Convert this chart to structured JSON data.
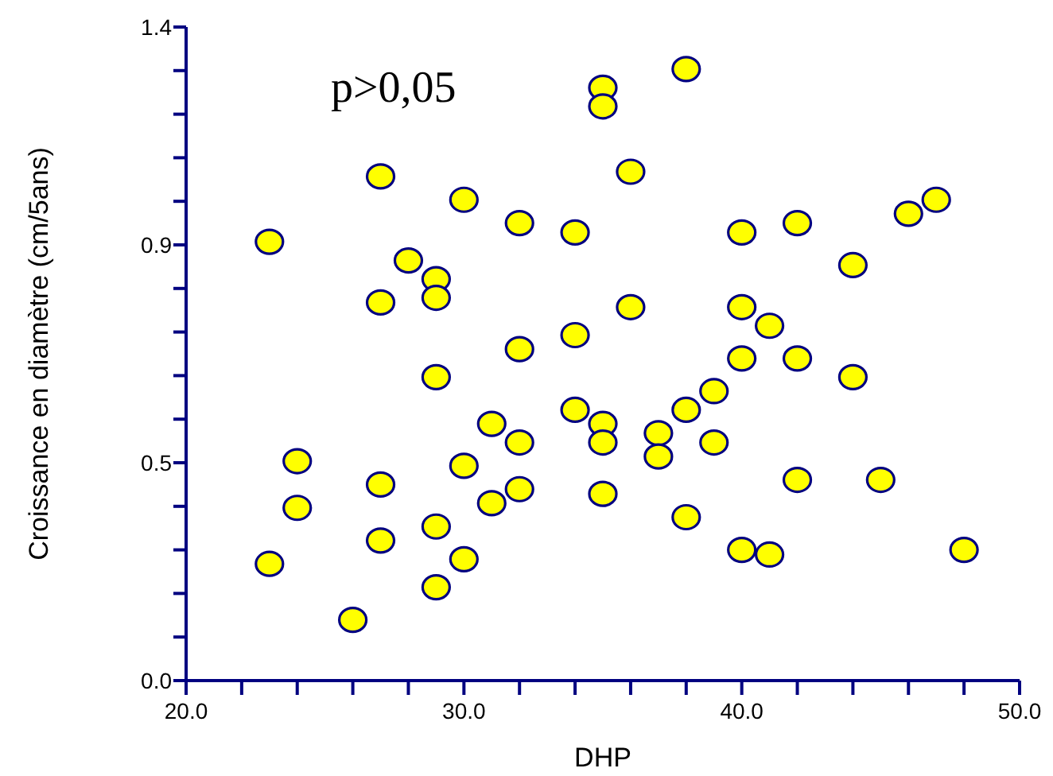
{
  "chart_data": {
    "type": "scatter",
    "xlabel": "DHP",
    "ylabel": "Croissance en diamètre (cm/5ans)",
    "annotations": [
      "p>0,05"
    ],
    "marker": "circle",
    "grid": false,
    "xlim": [
      20,
      50
    ],
    "ylim": [
      0,
      1.4
    ],
    "xticks": [
      {
        "value": 20,
        "label": "20.0"
      },
      {
        "value": 22,
        "label": null
      },
      {
        "value": 24,
        "label": null
      },
      {
        "value": 26,
        "label": null
      },
      {
        "value": 28,
        "label": null
      },
      {
        "value": 30,
        "label": "30.0"
      },
      {
        "value": 32,
        "label": null
      },
      {
        "value": 34,
        "label": null
      },
      {
        "value": 36,
        "label": null
      },
      {
        "value": 38,
        "label": null
      },
      {
        "value": 40,
        "label": "40.0"
      },
      {
        "value": 42,
        "label": null
      },
      {
        "value": 44,
        "label": null
      },
      {
        "value": 46,
        "label": null
      },
      {
        "value": 48,
        "label": null
      },
      {
        "value": 50,
        "label": "50.0"
      }
    ],
    "yticks": [
      {
        "value": 0,
        "label": "0.0"
      },
      {
        "value": 0.0933,
        "label": null
      },
      {
        "value": 0.1867,
        "label": null
      },
      {
        "value": 0.28,
        "label": null
      },
      {
        "value": 0.3733,
        "label": null
      },
      {
        "value": 0.4667,
        "label": "0.5"
      },
      {
        "value": 0.56,
        "label": null
      },
      {
        "value": 0.6533,
        "label": null
      },
      {
        "value": 0.7467,
        "label": null
      },
      {
        "value": 0.84,
        "label": null
      },
      {
        "value": 0.9333,
        "label": "0.9"
      },
      {
        "value": 1.0267,
        "label": null
      },
      {
        "value": 1.12,
        "label": null
      },
      {
        "value": 1.2133,
        "label": null
      },
      {
        "value": 1.3067,
        "label": null
      },
      {
        "value": 1.4,
        "label": "1.4"
      }
    ],
    "series": [
      {
        "color": "#ffff00",
        "x": [
          23,
          23,
          24,
          24,
          26,
          27,
          27,
          27,
          27,
          28,
          29,
          29,
          29,
          29,
          29,
          30,
          30,
          30,
          31,
          31,
          32,
          32,
          32,
          32,
          34,
          34,
          34,
          35,
          35,
          35,
          35,
          35,
          36,
          36,
          37,
          37,
          38,
          38,
          38,
          39,
          39,
          40,
          40,
          40,
          40,
          41,
          41,
          42,
          42,
          42,
          44,
          44,
          45,
          46,
          47,
          48
        ],
        "values": [
          0.94,
          0.25,
          0.47,
          0.37,
          0.13,
          1.08,
          0.81,
          0.42,
          0.3,
          0.9,
          0.86,
          0.82,
          0.65,
          0.33,
          0.2,
          1.03,
          0.46,
          0.26,
          0.55,
          0.38,
          0.98,
          0.71,
          0.51,
          0.41,
          0.96,
          0.74,
          0.58,
          1.27,
          1.23,
          0.55,
          0.51,
          0.4,
          1.09,
          0.8,
          0.53,
          0.48,
          1.31,
          0.58,
          0.35,
          0.62,
          0.51,
          0.96,
          0.8,
          0.69,
          0.28,
          0.76,
          0.27,
          0.98,
          0.69,
          0.43,
          0.89,
          0.65,
          0.43,
          1.0,
          1.03,
          0.28
        ]
      }
    ]
  }
}
